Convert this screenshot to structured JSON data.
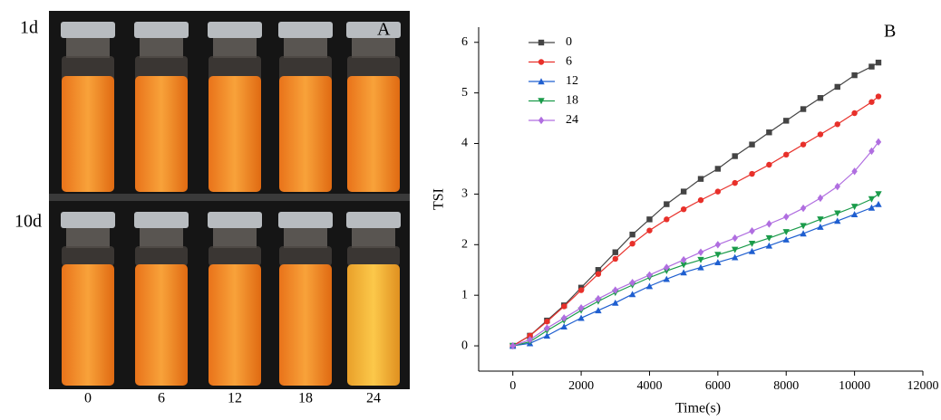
{
  "panel_a": {
    "label": "A",
    "rows": [
      "1d",
      "10d"
    ],
    "samples": [
      "0",
      "6",
      "12",
      "18",
      "24"
    ]
  },
  "chart_data": {
    "type": "line",
    "panel_label": "B",
    "x_label": "Time(s)",
    "y_label": "TSI",
    "x": [
      0,
      500,
      1000,
      1500,
      2000,
      2500,
      3000,
      3500,
      4000,
      4500,
      5000,
      5500,
      6000,
      6500,
      7000,
      7500,
      8000,
      8500,
      9000,
      9500,
      10000,
      10500,
      10700
    ],
    "series": [
      {
        "name": "0",
        "color": "#444444",
        "marker": "square",
        "values": [
          0,
          0.2,
          0.5,
          0.8,
          1.15,
          1.5,
          1.85,
          2.2,
          2.5,
          2.8,
          3.05,
          3.3,
          3.5,
          3.75,
          3.98,
          4.22,
          4.45,
          4.68,
          4.9,
          5.12,
          5.35,
          5.52,
          5.6
        ]
      },
      {
        "name": "6",
        "color": "#e8302a",
        "marker": "circle",
        "values": [
          0,
          0.2,
          0.48,
          0.78,
          1.1,
          1.42,
          1.72,
          2.02,
          2.28,
          2.5,
          2.7,
          2.88,
          3.05,
          3.22,
          3.4,
          3.58,
          3.78,
          3.98,
          4.18,
          4.38,
          4.6,
          4.82,
          4.93
        ]
      },
      {
        "name": "12",
        "color": "#1f5fd0",
        "marker": "triangle-up",
        "values": [
          0,
          0.05,
          0.2,
          0.38,
          0.55,
          0.7,
          0.85,
          1.02,
          1.18,
          1.32,
          1.45,
          1.55,
          1.65,
          1.75,
          1.87,
          1.98,
          2.1,
          2.22,
          2.35,
          2.47,
          2.6,
          2.73,
          2.8
        ]
      },
      {
        "name": "18",
        "color": "#1a9b4a",
        "marker": "triangle-down",
        "values": [
          0,
          0.08,
          0.3,
          0.5,
          0.7,
          0.88,
          1.05,
          1.2,
          1.35,
          1.48,
          1.6,
          1.7,
          1.8,
          1.9,
          2.02,
          2.13,
          2.25,
          2.37,
          2.5,
          2.62,
          2.75,
          2.9,
          3.0
        ]
      },
      {
        "name": "24",
        "color": "#b06ee0",
        "marker": "diamond",
        "values": [
          0,
          0.12,
          0.35,
          0.55,
          0.75,
          0.93,
          1.1,
          1.25,
          1.4,
          1.55,
          1.7,
          1.85,
          2.0,
          2.13,
          2.27,
          2.41,
          2.55,
          2.72,
          2.92,
          3.15,
          3.45,
          3.85,
          4.03
        ]
      }
    ],
    "xlim": [
      -1000,
      12000
    ],
    "ylim": [
      -0.5,
      6.3
    ],
    "xticks": [
      0,
      2000,
      4000,
      6000,
      8000,
      10000,
      12000
    ],
    "yticks": [
      0,
      1,
      2,
      3,
      4,
      5,
      6
    ],
    "legend": "upper-left"
  }
}
